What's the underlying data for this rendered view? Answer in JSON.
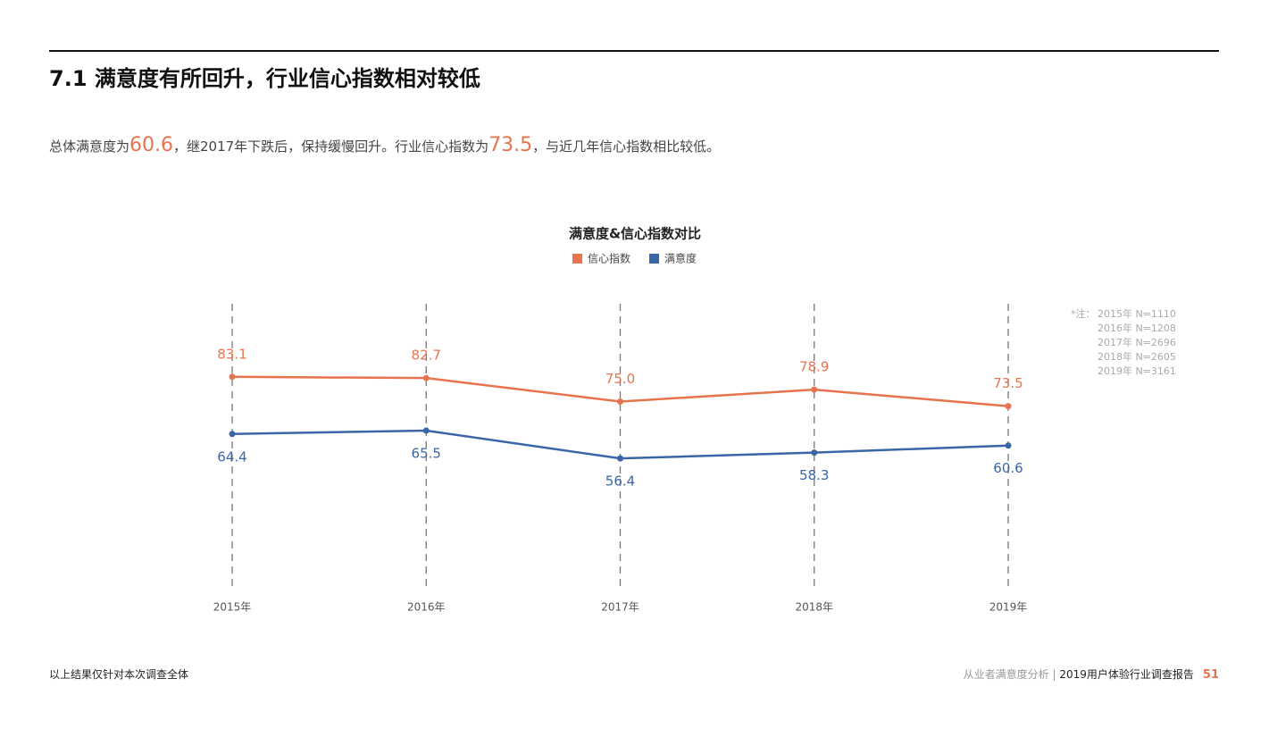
{
  "header": {
    "title": "7.1 满意度有所回升，行业信心指数相对较低"
  },
  "paragraph": {
    "parts": [
      "总体满意度为",
      "60.6",
      "，继2017年下跌后，保持缓慢回升。行业信心指数为",
      "73.5",
      "，与近几年信心指数相比较低。"
    ]
  },
  "chart_data": {
    "type": "line",
    "title": "满意度&信心指数对比",
    "categories": [
      "2015年",
      "2016年",
      "2017年",
      "2018年",
      "2019年"
    ],
    "series": [
      {
        "name": "信心指数",
        "color": "#e8734f",
        "values": [
          83.1,
          82.7,
          75.0,
          78.9,
          73.5
        ],
        "value_labels": [
          "83.1",
          "82.7",
          "75.0",
          "78.9",
          "73.5"
        ]
      },
      {
        "name": "满意度",
        "color": "#3a66a8",
        "values": [
          64.4,
          65.5,
          56.4,
          58.3,
          60.6
        ],
        "value_labels": [
          "64.4",
          "65.5",
          "56.4",
          "58.3",
          "60.6"
        ]
      }
    ]
  },
  "notes": {
    "label": "*注：",
    "lines": [
      "2015年  N=1110",
      "2016年  N=1208",
      "2017年  N=2696",
      "2018年  N=2605",
      "2019年  N=3161"
    ]
  },
  "footer": {
    "left": "以上结果仅针对本次调查全体",
    "section": "从业者满意度分析",
    "report": "2019用户体验行业调查报告",
    "page": "51"
  }
}
